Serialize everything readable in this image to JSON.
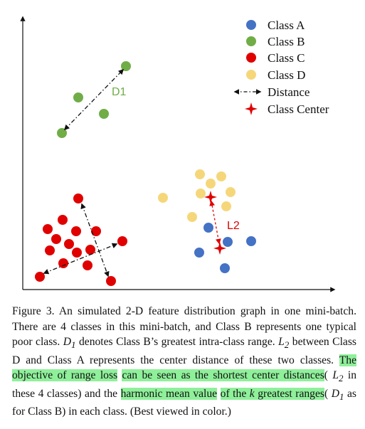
{
  "figure": {
    "legend": [
      {
        "label": "Class A",
        "kind": "dot",
        "color": "#4472c4"
      },
      {
        "label": "Class B",
        "kind": "dot",
        "color": "#70ad47"
      },
      {
        "label": "Class C",
        "kind": "dot",
        "color": "#e00000"
      },
      {
        "label": "Class D",
        "kind": "dot",
        "color": "#f5d77a"
      },
      {
        "label": "Distance",
        "kind": "arrow",
        "color": "#111111"
      },
      {
        "label": "Class Center",
        "kind": "star",
        "color": "#e00000"
      }
    ],
    "annotations": {
      "d1_label": "D1",
      "d1_color": "#70ad47",
      "l2_label": "L2",
      "l2_color": "#e00000"
    }
  },
  "caption": {
    "p1": "Figure 3. An simulated 2-D feature distribution graph in one mini-batch. There are 4 classes in this mini-batch, and Class B represents one typical poor class. ",
    "d1": "D",
    "d1_sub": "1",
    "p2": " denotes Class B’s greatest intra-class range. ",
    "l2": "L",
    "l2_sub": "2",
    "p3": " between Class D and Class A represents the center distance of these two classes. ",
    "hl1": "The objective of range loss",
    "gap1": " ",
    "hl2": "can be seen as the shortest center distances",
    "p4": "( ",
    "l2b": "L",
    "l2b_sub": "2",
    "p5": " in these 4 classes) and the ",
    "hl3": "harmonic mean value",
    "gap2": " ",
    "hl4a": "of the ",
    "hl4k": "k",
    "hl4b": " greatest ranges",
    "p6": "( ",
    "d1b": "D",
    "d1b_sub": "1",
    "p7": " as for Class B) in each class. (Best viewed in color.)"
  }
}
